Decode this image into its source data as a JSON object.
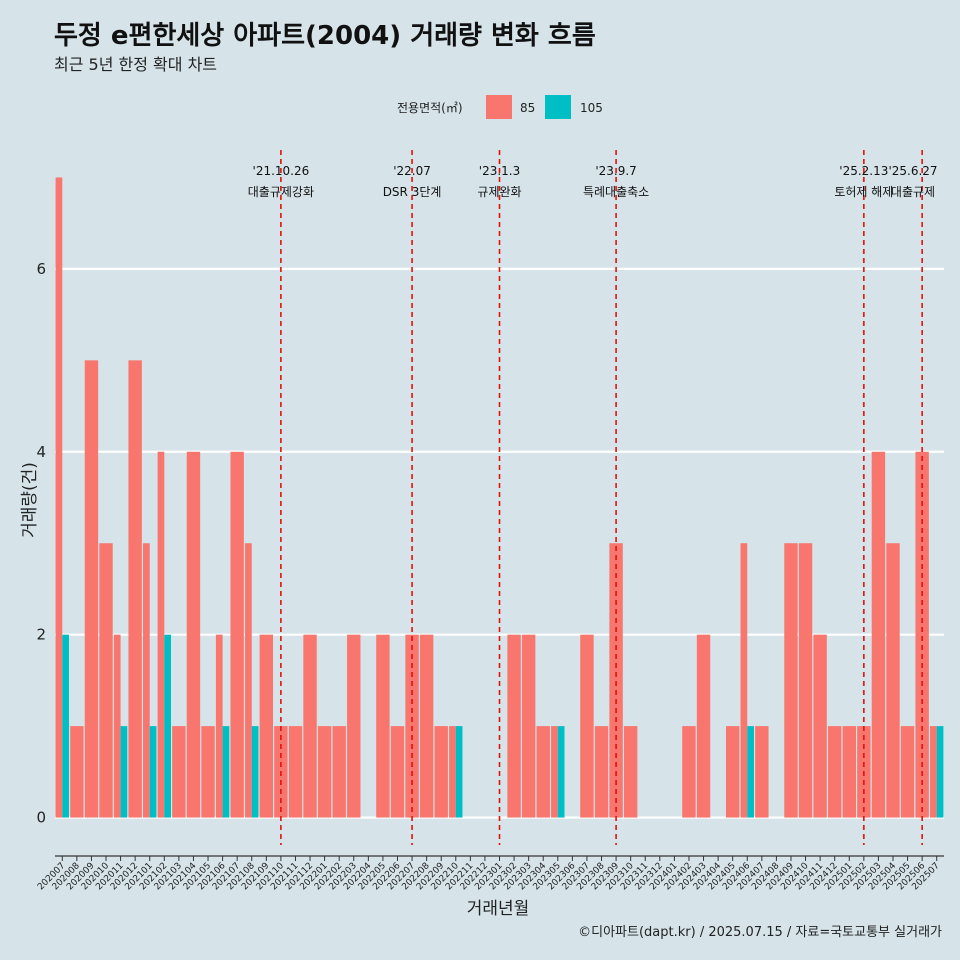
{
  "chart_data": {
    "type": "bar",
    "title": "두정 e편한세상 아파트(2004) 거래량 변화 흐름",
    "subtitle": "최근 5년 한정 확대 차트",
    "xlabel": "거래년월",
    "ylabel": "거래량(건)",
    "ylim": [
      -0.3,
      7.3
    ],
    "yticks": [
      0,
      2,
      4,
      6
    ],
    "grid": "horizontal",
    "legend": {
      "title": "전용면적(㎡)",
      "position": "top"
    },
    "categories": [
      "202007",
      "202008",
      "202009",
      "202010",
      "202011",
      "202012",
      "202101",
      "202102",
      "202103",
      "202104",
      "202105",
      "202106",
      "202107",
      "202108",
      "202109",
      "202110",
      "202111",
      "202112",
      "202201",
      "202202",
      "202203",
      "202204",
      "202205",
      "202206",
      "202207",
      "202208",
      "202209",
      "202210",
      "202211",
      "202212",
      "202301",
      "202302",
      "202303",
      "202304",
      "202305",
      "202306",
      "202307",
      "202308",
      "202309",
      "202310",
      "202311",
      "202312",
      "202401",
      "202402",
      "202403",
      "202404",
      "202405",
      "202406",
      "202407",
      "202408",
      "202409",
      "202410",
      "202411",
      "202412",
      "202501",
      "202502",
      "202503",
      "202504",
      "202505",
      "202506",
      "202507"
    ],
    "series": [
      {
        "name": "85",
        "color": "#f8766d",
        "values": [
          7,
          1,
          5,
          3,
          2,
          5,
          3,
          4,
          1,
          4,
          1,
          2,
          4,
          3,
          2,
          1,
          1,
          2,
          1,
          1,
          2,
          0,
          2,
          1,
          2,
          2,
          1,
          1,
          0,
          0,
          0,
          2,
          2,
          1,
          1,
          0,
          2,
          1,
          3,
          1,
          0,
          0,
          0,
          1,
          2,
          0,
          1,
          3,
          1,
          0,
          3,
          3,
          2,
          1,
          1,
          1,
          4,
          3,
          1,
          4,
          1
        ]
      },
      {
        "name": "105",
        "color": "#00bfc4",
        "values": [
          2,
          0,
          0,
          0,
          1,
          0,
          1,
          2,
          0,
          0,
          0,
          1,
          0,
          1,
          0,
          0,
          0,
          0,
          0,
          0,
          0,
          0,
          0,
          0,
          0,
          0,
          0,
          1,
          0,
          0,
          0,
          0,
          0,
          0,
          1,
          0,
          0,
          0,
          0,
          0,
          0,
          0,
          0,
          0,
          0,
          0,
          0,
          1,
          0,
          0,
          0,
          0,
          0,
          0,
          0,
          0,
          0,
          0,
          0,
          0,
          1
        ]
      }
    ],
    "annotations": [
      {
        "category": "202110",
        "date": "'21.10.26",
        "label": "대출규제강화"
      },
      {
        "category": "202207",
        "date": "'22.07",
        "label": "DSR 3단계"
      },
      {
        "category": "202301",
        "date": "'23.1.3",
        "label": "규제완화"
      },
      {
        "category": "202309",
        "date": "'23.9.7",
        "label": "특례대출축소"
      },
      {
        "category": "202502",
        "date": "'25.2.13",
        "label": "토허제 해제"
      },
      {
        "category": "202506",
        "date": "'25.6.27",
        "label": "대출규제"
      }
    ]
  },
  "caption": "©디아파트(dapt.kr) / 2025.07.15 / 자료=국토교통부 실거래가"
}
